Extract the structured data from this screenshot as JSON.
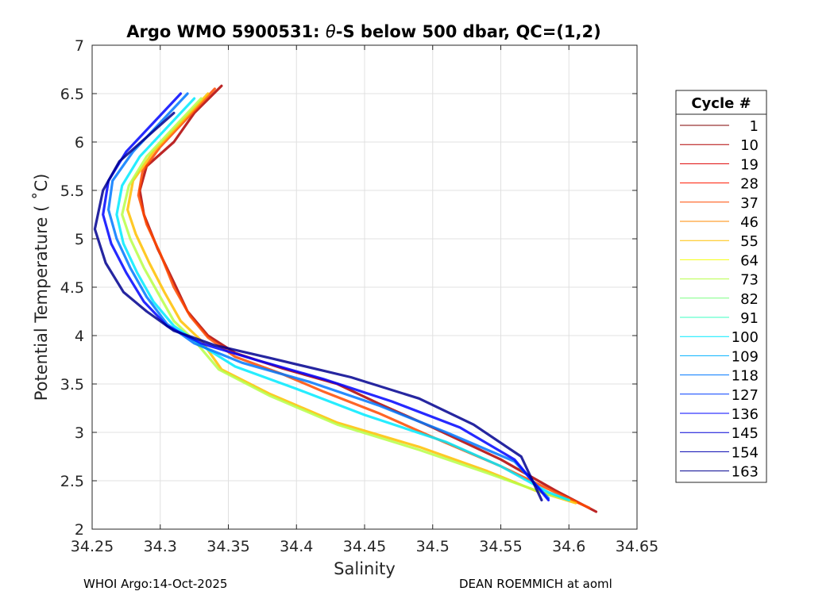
{
  "chart_data": {
    "type": "line",
    "title_prefix": "Argo WMO 5900531: ",
    "title_symbol": "θ",
    "title_suffix": "-S below 500 dbar,  QC=(1,2)",
    "xlabel": "Salinity",
    "ylabel": "Potential Temperature ( ˚C)",
    "xlim": [
      34.25,
      34.65
    ],
    "ylim": [
      2,
      7
    ],
    "xticks": [
      "34.25",
      "34.3",
      "34.35",
      "34.4",
      "34.45",
      "34.5",
      "34.55",
      "34.6",
      "34.65"
    ],
    "yticks": [
      "2",
      "2.5",
      "3",
      "3.5",
      "4",
      "4.5",
      "5",
      "5.5",
      "6",
      "6.5",
      "7"
    ],
    "grid": true,
    "legend": {
      "title": "Cycle #",
      "placement": "outside-right",
      "entries": [
        {
          "label": "1",
          "color": "#7f0000"
        },
        {
          "label": "10",
          "color": "#b00000"
        },
        {
          "label": "19",
          "color": "#de0000"
        },
        {
          "label": "28",
          "color": "#ff1a00"
        },
        {
          "label": "37",
          "color": "#ff4a00"
        },
        {
          "label": "46",
          "color": "#ff8a00"
        },
        {
          "label": "55",
          "color": "#ffc000"
        },
        {
          "label": "64",
          "color": "#f4ff0b"
        },
        {
          "label": "73",
          "color": "#b7ff48"
        },
        {
          "label": "82",
          "color": "#7bff84"
        },
        {
          "label": "91",
          "color": "#3effc1"
        },
        {
          "label": "100",
          "color": "#00eaff"
        },
        {
          "label": "109",
          "color": "#00b0ff"
        },
        {
          "label": "118",
          "color": "#0078ff"
        },
        {
          "label": "127",
          "color": "#003cff"
        },
        {
          "label": "136",
          "color": "#0004ff"
        },
        {
          "label": "145",
          "color": "#0000d6"
        },
        {
          "label": "154",
          "color": "#0000b0"
        },
        {
          "label": "163",
          "color": "#00008f"
        }
      ]
    },
    "series": [
      {
        "color": "#b00000",
        "points": [
          [
            34.345,
            6.58
          ],
          [
            34.325,
            6.3
          ],
          [
            34.31,
            6.0
          ],
          [
            34.29,
            5.75
          ],
          [
            34.285,
            5.5
          ],
          [
            34.288,
            5.25
          ],
          [
            34.298,
            4.9
          ],
          [
            34.31,
            4.55
          ],
          [
            34.32,
            4.25
          ],
          [
            34.335,
            4.0
          ],
          [
            34.355,
            3.82
          ],
          [
            34.39,
            3.66
          ],
          [
            34.43,
            3.5
          ],
          [
            34.46,
            3.3
          ],
          [
            34.5,
            3.05
          ],
          [
            34.55,
            2.72
          ],
          [
            34.59,
            2.4
          ],
          [
            34.62,
            2.18
          ]
        ]
      },
      {
        "color": "#ff4a00",
        "points": [
          [
            34.34,
            6.55
          ],
          [
            34.32,
            6.25
          ],
          [
            34.3,
            5.95
          ],
          [
            34.287,
            5.7
          ],
          [
            34.284,
            5.45
          ],
          [
            34.29,
            5.15
          ],
          [
            34.3,
            4.85
          ],
          [
            34.31,
            4.5
          ],
          [
            34.322,
            4.2
          ],
          [
            34.335,
            3.98
          ],
          [
            34.355,
            3.78
          ],
          [
            34.39,
            3.6
          ],
          [
            34.42,
            3.42
          ],
          [
            34.46,
            3.2
          ],
          [
            34.5,
            2.95
          ],
          [
            34.55,
            2.65
          ],
          [
            34.59,
            2.38
          ],
          [
            34.615,
            2.22
          ]
        ]
      },
      {
        "color": "#ffc000",
        "points": [
          [
            34.335,
            6.5
          ],
          [
            34.315,
            6.2
          ],
          [
            34.295,
            5.9
          ],
          [
            34.28,
            5.6
          ],
          [
            34.276,
            5.3
          ],
          [
            34.282,
            5.05
          ],
          [
            34.292,
            4.75
          ],
          [
            34.303,
            4.45
          ],
          [
            34.315,
            4.15
          ],
          [
            34.33,
            3.95
          ],
          [
            34.345,
            3.65
          ],
          [
            34.38,
            3.4
          ],
          [
            34.43,
            3.1
          ],
          [
            34.49,
            2.85
          ],
          [
            34.54,
            2.6
          ],
          [
            34.575,
            2.4
          ],
          [
            34.605,
            2.27
          ]
        ]
      },
      {
        "color": "#b7ff48",
        "points": [
          [
            34.33,
            6.45
          ],
          [
            34.31,
            6.15
          ],
          [
            34.29,
            5.85
          ],
          [
            34.277,
            5.55
          ],
          [
            34.272,
            5.25
          ],
          [
            34.278,
            5.0
          ],
          [
            34.288,
            4.7
          ],
          [
            34.3,
            4.4
          ],
          [
            34.31,
            4.15
          ],
          [
            34.325,
            3.95
          ],
          [
            34.343,
            3.65
          ],
          [
            34.38,
            3.38
          ],
          [
            34.43,
            3.08
          ],
          [
            34.49,
            2.82
          ],
          [
            34.54,
            2.58
          ],
          [
            34.58,
            2.38
          ],
          [
            34.6,
            2.3
          ]
        ]
      },
      {
        "color": "#00eaff",
        "points": [
          [
            34.325,
            6.45
          ],
          [
            34.305,
            6.15
          ],
          [
            34.285,
            5.85
          ],
          [
            34.272,
            5.55
          ],
          [
            34.268,
            5.25
          ],
          [
            34.273,
            4.95
          ],
          [
            34.283,
            4.65
          ],
          [
            34.295,
            4.35
          ],
          [
            34.31,
            4.1
          ],
          [
            34.33,
            3.9
          ],
          [
            34.355,
            3.68
          ],
          [
            34.4,
            3.45
          ],
          [
            34.45,
            3.18
          ],
          [
            34.51,
            2.9
          ],
          [
            34.55,
            2.65
          ],
          [
            34.585,
            2.38
          ],
          [
            34.6,
            2.3
          ]
        ]
      },
      {
        "color": "#0078ff",
        "points": [
          [
            34.32,
            6.5
          ],
          [
            34.3,
            6.2
          ],
          [
            34.28,
            5.9
          ],
          [
            34.265,
            5.6
          ],
          [
            34.262,
            5.3
          ],
          [
            34.268,
            5.0
          ],
          [
            34.278,
            4.7
          ],
          [
            34.29,
            4.4
          ],
          [
            34.305,
            4.12
          ],
          [
            34.325,
            3.92
          ],
          [
            34.36,
            3.72
          ],
          [
            34.41,
            3.52
          ],
          [
            34.46,
            3.28
          ],
          [
            34.51,
            3.0
          ],
          [
            34.56,
            2.7
          ],
          [
            34.585,
            2.32
          ]
        ]
      },
      {
        "color": "#0004ff",
        "points": [
          [
            34.315,
            6.5
          ],
          [
            34.295,
            6.2
          ],
          [
            34.275,
            5.9
          ],
          [
            34.262,
            5.6
          ],
          [
            34.258,
            5.25
          ],
          [
            34.264,
            4.95
          ],
          [
            34.275,
            4.65
          ],
          [
            34.288,
            4.35
          ],
          [
            34.305,
            4.1
          ],
          [
            34.33,
            3.92
          ],
          [
            34.37,
            3.75
          ],
          [
            34.42,
            3.55
          ],
          [
            34.47,
            3.32
          ],
          [
            34.52,
            3.05
          ],
          [
            34.56,
            2.72
          ],
          [
            34.585,
            2.3
          ]
        ]
      },
      {
        "color": "#00008f",
        "points": [
          [
            34.31,
            6.3
          ],
          [
            34.29,
            6.05
          ],
          [
            34.27,
            5.8
          ],
          [
            34.258,
            5.5
          ],
          [
            34.252,
            5.1
          ],
          [
            34.26,
            4.75
          ],
          [
            34.273,
            4.45
          ],
          [
            34.29,
            4.25
          ],
          [
            34.31,
            4.05
          ],
          [
            34.34,
            3.9
          ],
          [
            34.38,
            3.77
          ],
          [
            34.44,
            3.57
          ],
          [
            34.49,
            3.35
          ],
          [
            34.53,
            3.08
          ],
          [
            34.565,
            2.75
          ],
          [
            34.58,
            2.3
          ]
        ]
      }
    ]
  },
  "footer": {
    "left": "WHOI Argo:14-Oct-2025",
    "right": "DEAN ROEMMICH at aoml"
  }
}
